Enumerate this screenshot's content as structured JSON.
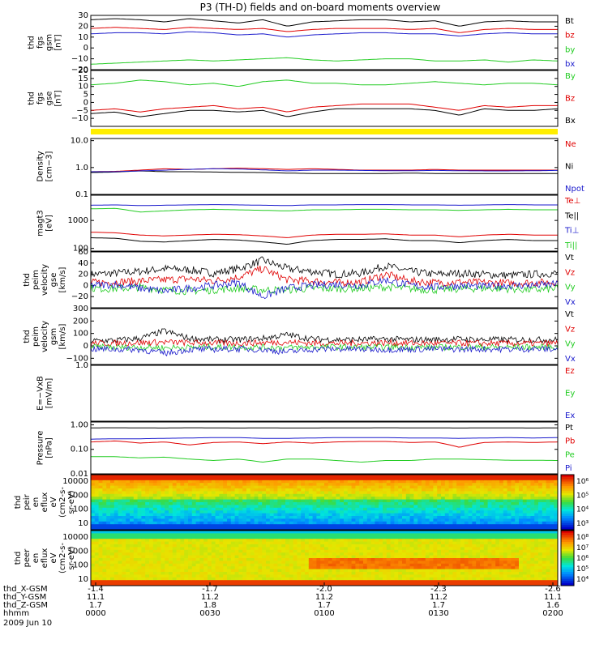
{
  "title": "P3 (TH-D) fields and on-board moments overview",
  "colors": {
    "black": "#000000",
    "red": "#e00000",
    "green": "#22cc22",
    "blue": "#1a1acc",
    "yellow": "#ffee00"
  },
  "chart_data": [
    {
      "id": "fgs-gsm",
      "type": "line",
      "ylabel": [
        "thd",
        "fgs",
        "gsm",
        "[nT]"
      ],
      "ylim": [
        -20,
        30
      ],
      "ticks": [
        "30",
        "20",
        "10",
        "0",
        "−10",
        "−20"
      ],
      "series": [
        {
          "name": "Bt",
          "color": "black",
          "values": [
            26,
            27,
            26,
            24,
            27,
            25,
            23,
            26,
            20,
            24,
            25,
            26,
            26,
            24,
            25,
            20,
            24,
            25,
            24,
            24
          ]
        },
        {
          "name": "bz",
          "color": "red",
          "values": [
            18,
            19,
            18,
            17,
            19,
            18,
            17,
            18,
            15,
            17,
            18,
            18,
            18,
            17,
            18,
            14,
            17,
            18,
            17,
            17
          ]
        },
        {
          "name": "by",
          "color": "green",
          "values": [
            -15,
            -14,
            -13,
            -12,
            -11,
            -12,
            -11,
            -10,
            -9,
            -11,
            -12,
            -11,
            -10,
            -10,
            -12,
            -12,
            -11,
            -13,
            -11,
            -12
          ]
        },
        {
          "name": "bx",
          "color": "blue",
          "values": [
            13,
            14,
            14,
            13,
            15,
            14,
            12,
            13,
            10,
            12,
            13,
            14,
            14,
            13,
            13,
            11,
            13,
            14,
            13,
            13
          ]
        }
      ]
    },
    {
      "id": "fgs-gse",
      "type": "line",
      "ylabel": [
        "thd",
        "fgs",
        "gse",
        "[nT]"
      ],
      "ylim": [
        -15,
        20
      ],
      "ticks": [
        "20",
        "15",
        "10",
        "5",
        "0",
        "−5",
        "−10"
      ],
      "series": [
        {
          "name": "By",
          "color": "green",
          "values": [
            11,
            12,
            14,
            13,
            11,
            12,
            10,
            13,
            14,
            12,
            12,
            11,
            11,
            12,
            13,
            12,
            11,
            12,
            12,
            11
          ]
        },
        {
          "name": "Bz",
          "color": "red",
          "values": [
            -5,
            -4,
            -6,
            -4,
            -3,
            -2,
            -4,
            -3,
            -6,
            -3,
            -2,
            -1,
            -1,
            -1,
            -3,
            -5,
            -2,
            -3,
            -2,
            -2
          ]
        },
        {
          "name": "Bx",
          "color": "black",
          "values": [
            -7,
            -6,
            -9,
            -7,
            -5,
            -5,
            -6,
            -5,
            -9,
            -6,
            -4,
            -4,
            -4,
            -4,
            -5,
            -8,
            -4,
            -5,
            -5,
            -4
          ]
        }
      ]
    },
    {
      "id": "density",
      "type": "line",
      "log": true,
      "ylabel": [
        "Density",
        "[cm−3]"
      ],
      "ylim": [
        0.1,
        12
      ],
      "ticks": [
        "10.0",
        "1.0",
        "0.1"
      ],
      "series": [
        {
          "name": "Ne",
          "color": "red",
          "values": [
            0.7,
            0.72,
            0.8,
            0.9,
            0.85,
            0.9,
            0.95,
            0.9,
            0.85,
            0.9,
            0.85,
            0.8,
            0.8,
            0.8,
            0.85,
            0.8,
            0.8,
            0.8,
            0.8,
            0.8
          ]
        },
        {
          "name": "Ni",
          "color": "black",
          "values": [
            0.65,
            0.68,
            0.75,
            0.7,
            0.7,
            0.68,
            0.66,
            0.65,
            0.62,
            0.6,
            0.6,
            0.6,
            0.6,
            0.62,
            0.6,
            0.6,
            0.6,
            0.6,
            0.6,
            0.6
          ]
        },
        {
          "name": "Npot",
          "color": "blue",
          "values": [
            0.7,
            0.7,
            0.75,
            0.8,
            0.85,
            0.9,
            0.88,
            0.82,
            0.75,
            0.8,
            0.8,
            0.78,
            0.76,
            0.76,
            0.78,
            0.76,
            0.75,
            0.75,
            0.76,
            0.78
          ]
        }
      ]
    },
    {
      "id": "temperature",
      "type": "line",
      "log": true,
      "ylabel": [
        "magt3",
        "[eV]"
      ],
      "ylim": [
        80,
        8000
      ],
      "ticks": [
        "1000",
        "100"
      ],
      "series": [
        {
          "name": "Te⊥",
          "color": "red",
          "values": [
            380,
            360,
            300,
            280,
            300,
            320,
            310,
            280,
            240,
            300,
            320,
            320,
            330,
            300,
            300,
            260,
            300,
            320,
            300,
            300
          ]
        },
        {
          "name": "Te||",
          "color": "black",
          "values": [
            240,
            230,
            180,
            170,
            190,
            210,
            200,
            170,
            140,
            190,
            210,
            210,
            220,
            190,
            190,
            160,
            190,
            210,
            190,
            190
          ]
        },
        {
          "name": "Ti⊥",
          "color": "blue",
          "values": [
            3500,
            3600,
            3400,
            3500,
            3600,
            3700,
            3600,
            3500,
            3400,
            3600,
            3600,
            3700,
            3700,
            3600,
            3600,
            3500,
            3600,
            3700,
            3600,
            3600
          ]
        },
        {
          "name": "Ti||",
          "color": "green",
          "values": [
            2600,
            2700,
            2000,
            2200,
            2400,
            2500,
            2400,
            2300,
            2200,
            2400,
            2400,
            2500,
            2500,
            2400,
            2400,
            2300,
            2400,
            2500,
            2400,
            2400
          ]
        }
      ]
    },
    {
      "id": "peim-gse",
      "type": "line",
      "ylabel": [
        "thd",
        "peim",
        "velocity",
        "gse",
        "[km/s]"
      ],
      "ylim": [
        -40,
        60
      ],
      "ticks": [
        "60",
        "40",
        "20",
        "0",
        "−20"
      ],
      "series": [
        {
          "name": "Vt",
          "color": "black",
          "values": [
            20,
            22,
            25,
            30,
            28,
            22,
            30,
            45,
            30,
            25,
            20,
            22,
            35,
            25,
            20,
            22,
            20,
            18,
            20,
            22
          ]
        },
        {
          "name": "Vz",
          "color": "red",
          "values": [
            5,
            6,
            8,
            10,
            12,
            8,
            15,
            30,
            10,
            8,
            5,
            6,
            20,
            8,
            5,
            6,
            5,
            4,
            5,
            6
          ]
        },
        {
          "name": "Vy",
          "color": "green",
          "values": [
            -5,
            -6,
            -3,
            -8,
            -10,
            -8,
            -5,
            -8,
            -8,
            -5,
            -6,
            -5,
            -3,
            -6,
            -8,
            -6,
            -5,
            -6,
            -8,
            -6
          ]
        },
        {
          "name": "Vx",
          "color": "blue",
          "values": [
            0,
            2,
            -5,
            -10,
            -5,
            0,
            5,
            -20,
            -5,
            0,
            2,
            0,
            10,
            0,
            -3,
            0,
            -2,
            0,
            0,
            2
          ]
        }
      ]
    },
    {
      "id": "peim-gsm",
      "type": "line",
      "ylabel": [
        "thd",
        "peim",
        "velocity",
        "gsm",
        "[km/s]"
      ],
      "ylim": [
        -150,
        300
      ],
      "ticks": [
        "300",
        "200",
        "100",
        "0",
        "−100"
      ],
      "series": [
        {
          "name": "Vt",
          "color": "black",
          "values": [
            40,
            45,
            60,
            120,
            60,
            50,
            50,
            60,
            90,
            55,
            50,
            50,
            55,
            50,
            50,
            55,
            50,
            50,
            50,
            50
          ]
        },
        {
          "name": "Vz",
          "color": "red",
          "values": [
            20,
            22,
            25,
            30,
            25,
            22,
            22,
            25,
            30,
            22,
            20,
            22,
            25,
            22,
            20,
            22,
            20,
            20,
            20,
            22
          ]
        },
        {
          "name": "Vy",
          "color": "green",
          "values": [
            -10,
            -12,
            -10,
            -15,
            -12,
            -10,
            -10,
            -12,
            -15,
            -10,
            -10,
            -12,
            -10,
            -10,
            -12,
            -10,
            -10,
            -12,
            -10,
            -10
          ]
        },
        {
          "name": "Vx",
          "color": "blue",
          "values": [
            -25,
            -28,
            -30,
            -60,
            -30,
            -28,
            -25,
            -30,
            -50,
            -28,
            -25,
            -28,
            -30,
            -28,
            -25,
            -28,
            -25,
            -28,
            -25,
            -28
          ]
        }
      ]
    },
    {
      "id": "exb",
      "type": "line",
      "ylabel": [
        "E=−VxB",
        "[mV/m]"
      ],
      "ylim": [
        0,
        1
      ],
      "ticks": [
        "1.0"
      ],
      "series": [
        {
          "name": "Ez",
          "color": "red",
          "values": []
        },
        {
          "name": "Ey",
          "color": "green",
          "values": []
        },
        {
          "name": "Ex",
          "color": "blue",
          "values": []
        }
      ]
    },
    {
      "id": "pressure",
      "type": "line",
      "log": true,
      "ylabel": [
        "Pressure",
        "[nPa]"
      ],
      "ylim": [
        0.01,
        1.3
      ],
      "ticks": [
        "1.00",
        "0.10",
        "0.01"
      ],
      "series": [
        {
          "name": "Pt",
          "color": "black",
          "values": [
            0.75,
            0.76,
            0.75,
            0.74,
            0.76,
            0.75,
            0.74,
            0.75,
            0.74,
            0.74,
            0.75,
            0.75,
            0.76,
            0.75,
            0.75,
            0.74,
            0.75,
            0.75,
            0.74,
            0.75
          ]
        },
        {
          "name": "Pb",
          "color": "red",
          "values": [
            0.2,
            0.22,
            0.18,
            0.2,
            0.15,
            0.19,
            0.2,
            0.17,
            0.2,
            0.18,
            0.2,
            0.21,
            0.21,
            0.19,
            0.2,
            0.12,
            0.19,
            0.2,
            0.19,
            0.2
          ]
        },
        {
          "name": "Pe",
          "color": "green",
          "values": [
            0.05,
            0.05,
            0.045,
            0.048,
            0.04,
            0.035,
            0.04,
            0.03,
            0.04,
            0.04,
            0.035,
            0.03,
            0.035,
            0.035,
            0.04,
            0.04,
            0.038,
            0.036,
            0.036,
            0.035
          ]
        },
        {
          "name": "Pi",
          "color": "blue",
          "values": [
            0.26,
            0.27,
            0.27,
            0.28,
            0.29,
            0.3,
            0.3,
            0.28,
            0.28,
            0.29,
            0.3,
            0.3,
            0.3,
            0.29,
            0.29,
            0.28,
            0.29,
            0.3,
            0.29,
            0.3
          ]
        }
      ]
    },
    {
      "id": "peir",
      "type": "heatmap",
      "ylabel": [
        "thd",
        "peir",
        "en",
        "eflux",
        "eV",
        "(cm2-s-",
        "sr-eV)"
      ],
      "ticks": [
        "10000",
        "1000",
        "100",
        "10"
      ],
      "colorbar_ticks": [
        "10⁶",
        "10⁵",
        "10⁴",
        "10³"
      ]
    },
    {
      "id": "peer",
      "type": "heatmap",
      "ylabel": [
        "thd",
        "peer",
        "en",
        "eflux",
        "eV",
        "(cm2-s-",
        "sr-eV)"
      ],
      "ticks": [
        "10000",
        "1000",
        "100",
        "10"
      ],
      "colorbar_ticks": [
        "10⁸",
        "10⁷",
        "10⁶",
        "10⁵",
        "10⁴"
      ]
    }
  ],
  "x_axis": {
    "ticks": [
      {
        "x": "-1.4",
        "y": "11.1",
        "z": "1.7",
        "hhmm": "0000"
      },
      {
        "x": "-1.7",
        "y": "11.2",
        "z": "1.8",
        "hhmm": "0030"
      },
      {
        "x": "-2.0",
        "y": "11.2",
        "z": "1.7",
        "hhmm": "0100"
      },
      {
        "x": "-2.3",
        "y": "11.2",
        "z": "1.7",
        "hhmm": "0130"
      },
      {
        "x": "-2.6",
        "y": "11.1",
        "z": "1.6",
        "hhmm": "0200"
      }
    ],
    "row_labels": [
      "thd_X-GSM",
      "thd_Y-GSM",
      "thd_Z-GSM",
      "hhmm"
    ],
    "date": "2009 Jun 10"
  }
}
